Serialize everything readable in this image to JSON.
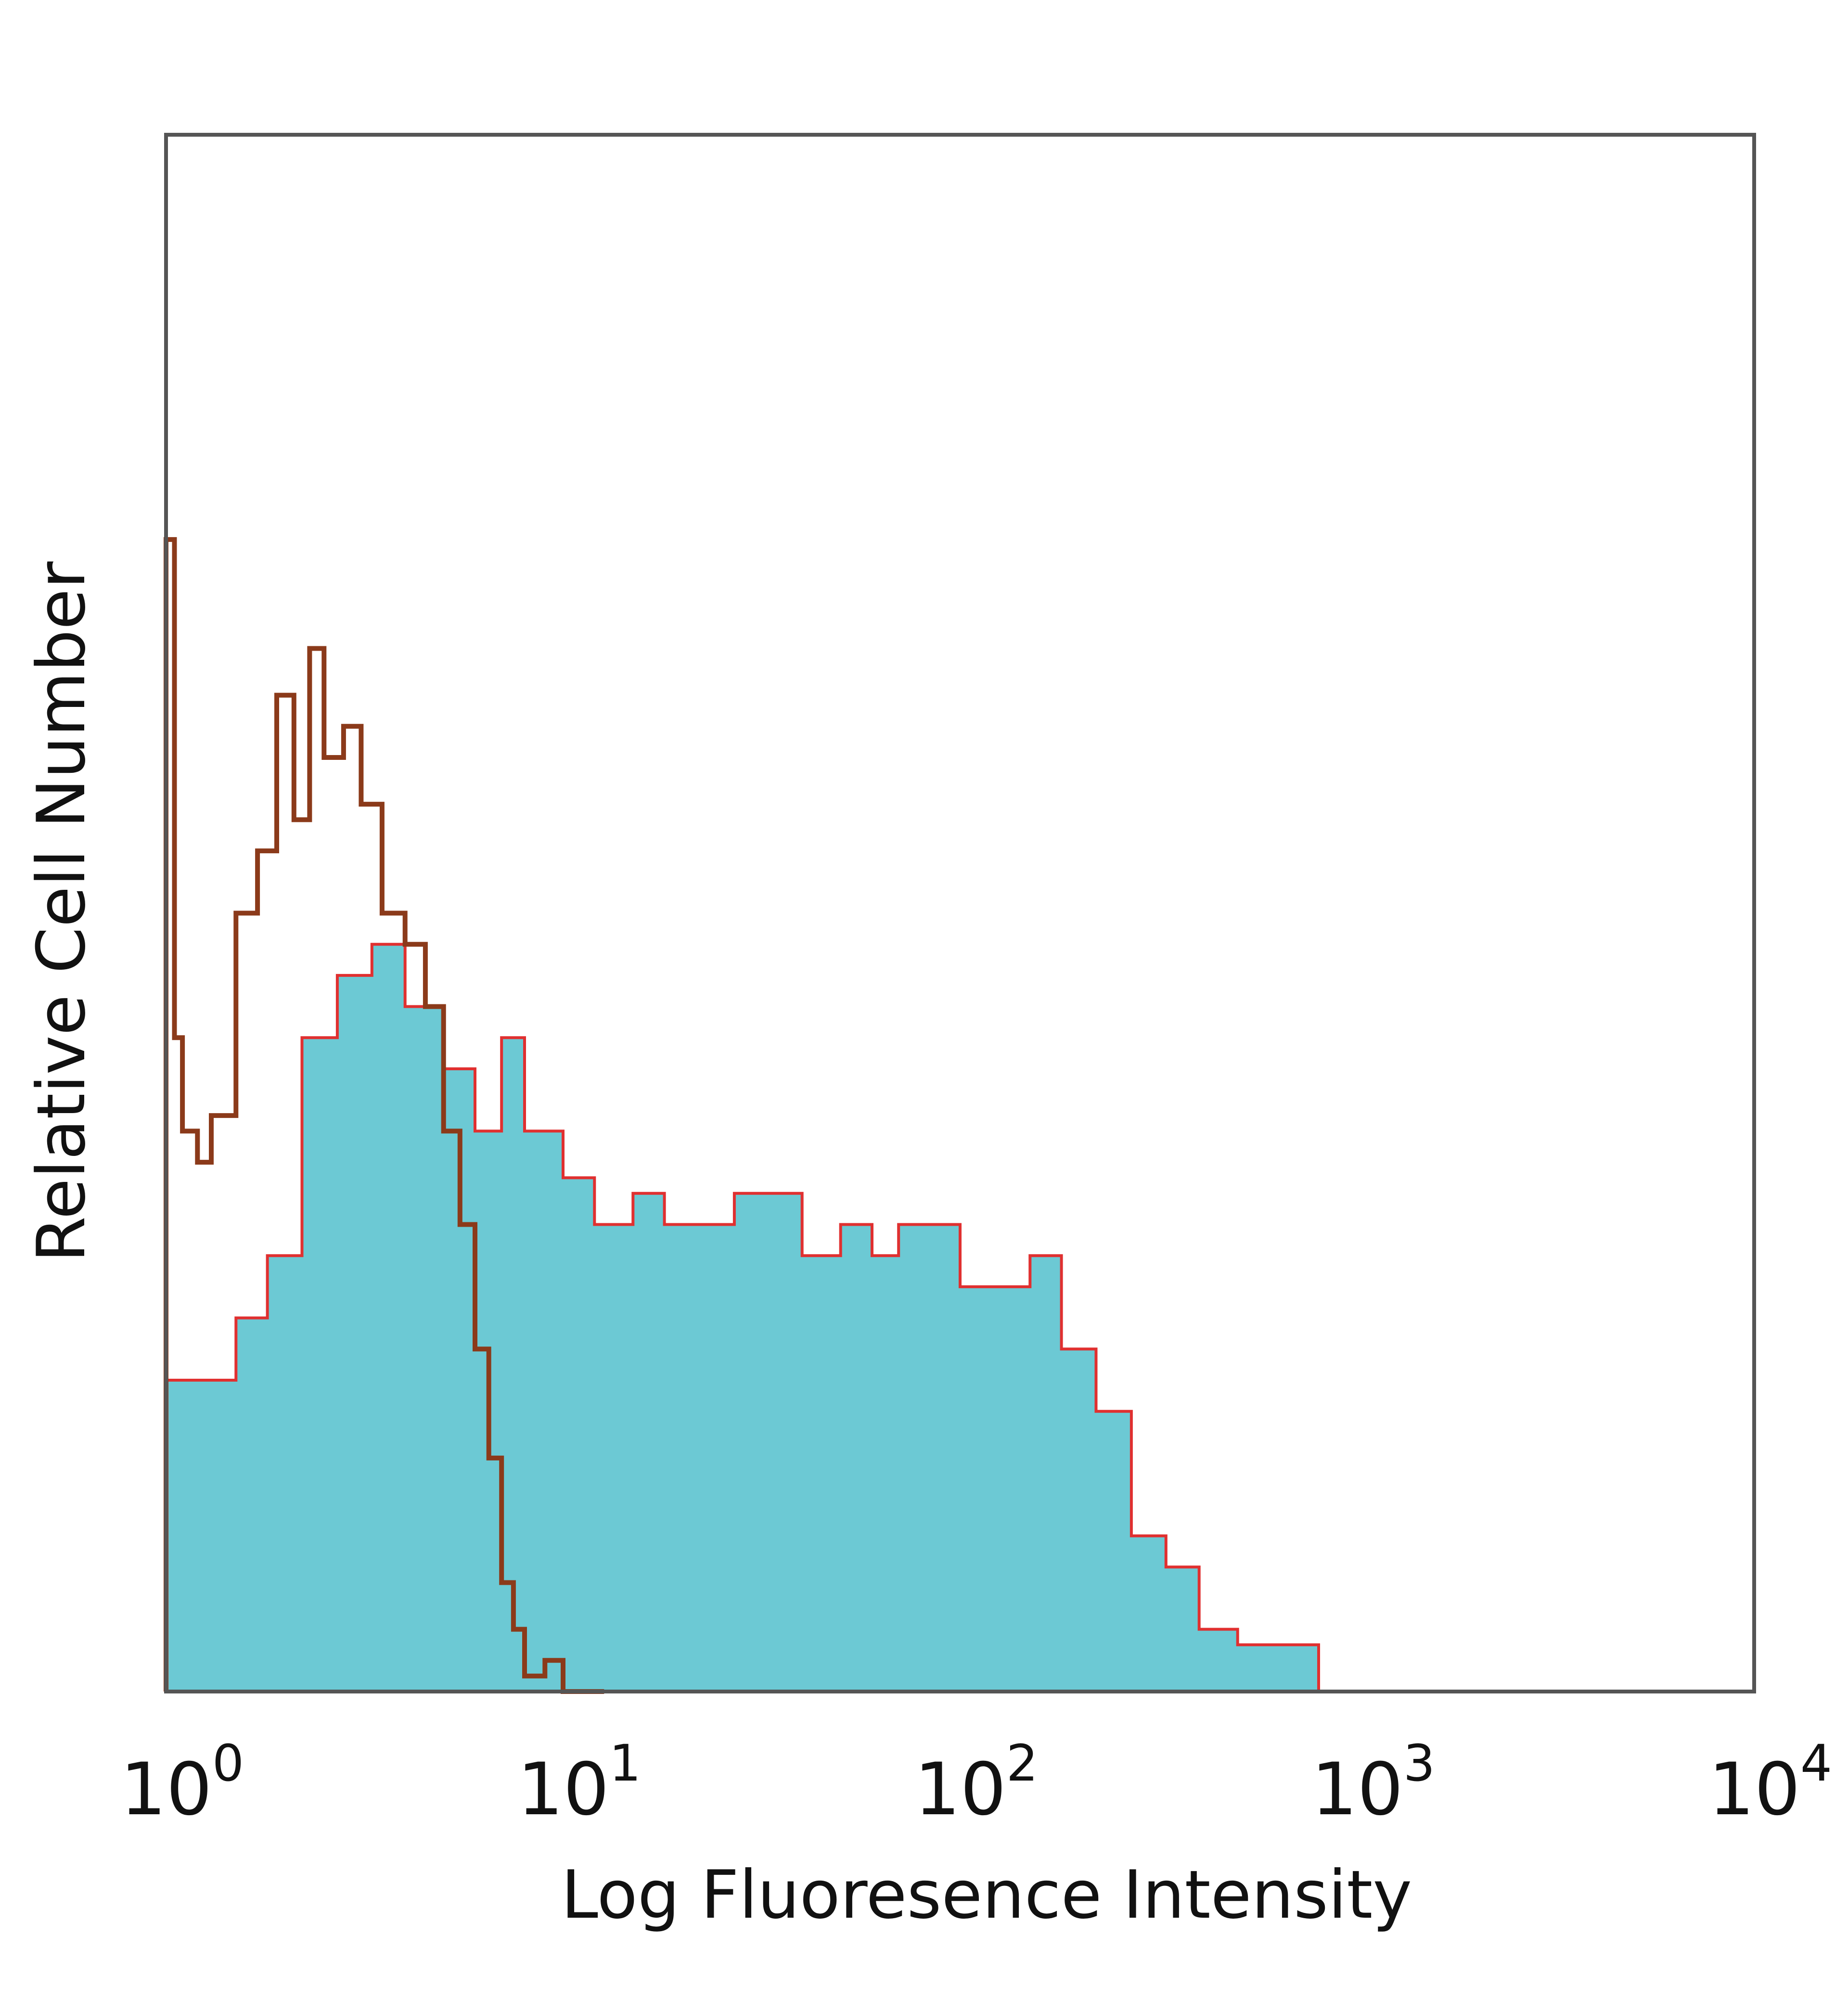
{
  "chart_data": {
    "type": "area",
    "title": "",
    "xlabel": "Log Fluoresence Intensity",
    "ylabel": "Relative Cell Number",
    "xscale": "log",
    "xlim": [
      1,
      10000
    ],
    "ylim": [
      0,
      1
    ],
    "grid": false,
    "x_ticks": [
      {
        "base": "10",
        "exp": "0"
      },
      {
        "base": "10",
        "exp": "1"
      },
      {
        "base": "10",
        "exp": "2"
      },
      {
        "base": "10",
        "exp": "3"
      },
      {
        "base": "10",
        "exp": "4"
      }
    ],
    "series": [
      {
        "style": "filled",
        "fill": "#6cc9d4",
        "edge": "#e03030",
        "x": [
          1.0,
          1.2,
          1.5,
          1.8,
          2.2,
          2.7,
          3.3,
          4.0,
          5.0,
          6.0,
          7.0,
          8.0,
          10,
          12,
          15,
          18,
          22,
          27,
          33,
          40,
          50,
          60,
          70,
          80,
          100,
          120,
          150,
          180,
          220,
          270,
          330,
          400,
          500,
          700,
          800
        ],
        "y": [
          0.2,
          0.2,
          0.24,
          0.28,
          0.42,
          0.46,
          0.48,
          0.44,
          0.4,
          0.36,
          0.42,
          0.36,
          0.33,
          0.3,
          0.32,
          0.3,
          0.3,
          0.32,
          0.32,
          0.28,
          0.3,
          0.28,
          0.3,
          0.3,
          0.26,
          0.26,
          0.28,
          0.22,
          0.18,
          0.1,
          0.08,
          0.04,
          0.03,
          0.03,
          0.0
        ]
      },
      {
        "style": "outline",
        "edge": "#8b3a1a",
        "x": [
          1.0,
          1.05,
          1.1,
          1.2,
          1.3,
          1.5,
          1.7,
          1.9,
          2.1,
          2.3,
          2.5,
          2.8,
          3.1,
          3.5,
          4.0,
          4.5,
          5.0,
          5.5,
          6.0,
          6.5,
          7.0,
          7.5,
          8.0,
          9.0,
          10,
          12
        ],
        "y": [
          0.74,
          0.42,
          0.36,
          0.34,
          0.37,
          0.5,
          0.54,
          0.64,
          0.56,
          0.67,
          0.6,
          0.62,
          0.57,
          0.5,
          0.48,
          0.44,
          0.36,
          0.3,
          0.22,
          0.15,
          0.07,
          0.04,
          0.01,
          0.02,
          0.0,
          0.0
        ]
      }
    ]
  }
}
